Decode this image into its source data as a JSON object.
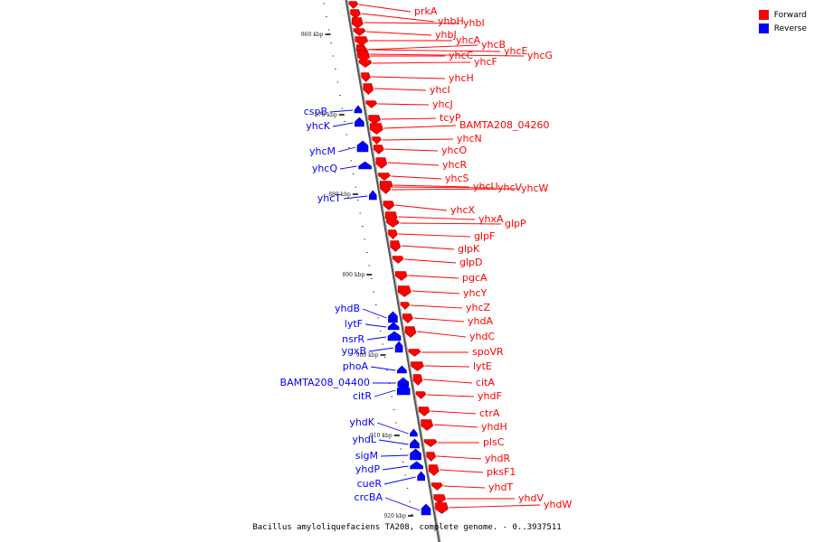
{
  "colors": {
    "forward": "#ff0000",
    "reverse": "#0000ff",
    "backbone": "#888888"
  },
  "legend": {
    "forward": "Forward",
    "reverse": "Reverse"
  },
  "caption": "Bacillus amyloliquefaciens TA208, complete genome. - 0..3937511",
  "ticks": [
    "860 kbp",
    "870 kbp",
    "880 kbp",
    "890 kbp",
    "900 kbp",
    "910 kbp",
    "920 kbp"
  ],
  "forward_genes": [
    "prkA",
    "yhbH",
    "yhbI",
    "yhbJ",
    "yhcA",
    "yhcB",
    "yhcE",
    "yhcG",
    "yhcC",
    "yhcF",
    "yhcH",
    "yhcI",
    "yhcJ",
    "tcyP",
    "BAMTA208_04260",
    "yhcN",
    "yhcO",
    "yhcR",
    "yhcS",
    "yhcU",
    "yhcV",
    "yhcW",
    "yhcX",
    "yhxA",
    "glpP",
    "glpF",
    "glpK",
    "glpD",
    "pgcA",
    "yhcY",
    "yhcZ",
    "yhdA",
    "yhdC",
    "spoVR",
    "lytE",
    "citA",
    "yhdF",
    "ctrA",
    "yhdH",
    "plsC",
    "yhdR",
    "pksF1",
    "yhdT",
    "yhdV",
    "yhdW"
  ],
  "reverse_genes": [
    "cspB",
    "yhcK",
    "yhcM",
    "yhcQ",
    "yhcT",
    "yhdB",
    "lytF",
    "nsrR",
    "ygxB",
    "phoA",
    "BAMTA208_04400",
    "citR",
    "yhdK",
    "yhdL",
    "sigM",
    "yhdP",
    "cueR",
    "crcBA"
  ]
}
